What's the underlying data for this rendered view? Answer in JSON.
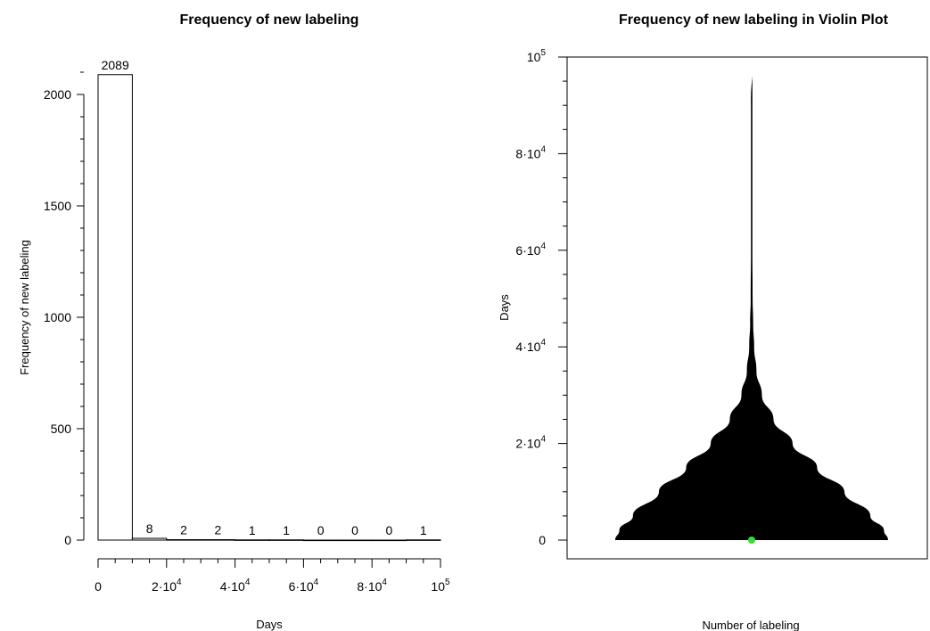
{
  "chart_data": [
    {
      "type": "bar",
      "title": "Frequency of new labeling",
      "xlabel": "Days",
      "ylabel": "Frequency of new labeling",
      "x_range": [
        0,
        100000
      ],
      "ylim": [
        0,
        2100
      ],
      "bin_edges": [
        0,
        10000,
        20000,
        30000,
        40000,
        50000,
        60000,
        70000,
        80000,
        90000,
        100000
      ],
      "values": [
        2089,
        8,
        2,
        2,
        1,
        1,
        0,
        0,
        0,
        1
      ],
      "data_labels": [
        "2089",
        "8",
        "2",
        "2",
        "1",
        "1",
        "0",
        "0",
        "0",
        "1"
      ],
      "x_ticks": [
        {
          "value": 0,
          "mant": "0",
          "exp": ""
        },
        {
          "value": 20000,
          "mant": "2·10",
          "exp": "4"
        },
        {
          "value": 40000,
          "mant": "4·10",
          "exp": "4"
        },
        {
          "value": 60000,
          "mant": "6·10",
          "exp": "4"
        },
        {
          "value": 80000,
          "mant": "8·10",
          "exp": "4"
        },
        {
          "value": 100000,
          "mant": "10",
          "exp": "5"
        }
      ],
      "y_ticks": [
        {
          "value": 0,
          "label": "0"
        },
        {
          "value": 500,
          "label": "500"
        },
        {
          "value": 1000,
          "label": "1000"
        },
        {
          "value": 1500,
          "label": "1500"
        },
        {
          "value": 2000,
          "label": "2000"
        }
      ],
      "grid": false,
      "bar_fill": "#ffffff",
      "bar_stroke": "#000000"
    },
    {
      "type": "violin",
      "title": "Frequency of new labeling in Violin Plot",
      "xlabel": "Number of labeling",
      "ylabel": "Days",
      "ylim": [
        0,
        100000
      ],
      "y_ticks": [
        {
          "value": 0,
          "mant": "0",
          "exp": ""
        },
        {
          "value": 20000,
          "mant": "2·10",
          "exp": "4"
        },
        {
          "value": 40000,
          "mant": "4·10",
          "exp": "4"
        },
        {
          "value": 60000,
          "mant": "6·10",
          "exp": "4"
        },
        {
          "value": 80000,
          "mant": "8·10",
          "exp": "4"
        },
        {
          "value": 100000,
          "mant": "10",
          "exp": "5"
        }
      ],
      "data_min": 0,
      "data_max": 96000,
      "median": 0,
      "density_profile": [
        {
          "days": 0,
          "width": 1.0
        },
        {
          "days": 2000,
          "width": 0.97
        },
        {
          "days": 5000,
          "width": 0.87
        },
        {
          "days": 10000,
          "width": 0.68
        },
        {
          "days": 15000,
          "width": 0.48
        },
        {
          "days": 20000,
          "width": 0.3
        },
        {
          "days": 25000,
          "width": 0.16
        },
        {
          "days": 30000,
          "width": 0.075
        },
        {
          "days": 35000,
          "width": 0.035
        },
        {
          "days": 40000,
          "width": 0.018
        },
        {
          "days": 45000,
          "width": 0.011
        },
        {
          "days": 50000,
          "width": 0.007
        },
        {
          "days": 60000,
          "width": 0.004
        },
        {
          "days": 70000,
          "width": 0.003
        },
        {
          "days": 80000,
          "width": 0.003
        },
        {
          "days": 90000,
          "width": 0.003
        },
        {
          "days": 96000,
          "width": 0.002
        }
      ],
      "violin_fill": "#000000",
      "median_marker_color": "#33dd33",
      "grid": false
    }
  ]
}
